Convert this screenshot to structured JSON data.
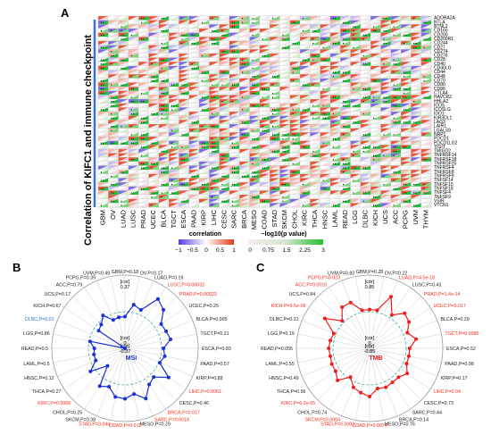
{
  "panel_a": {
    "letter": "A",
    "ylabel": "Correlation of KIFC1 and immune checkpoint",
    "legend_corr_title": "correlation",
    "legend_corr_ticks": [
      "−1",
      "−0.5",
      "0",
      "0.5",
      "1"
    ],
    "legend_p_title": "−log10(p value)",
    "legend_p_ticks": [
      "0",
      "0.75",
      "1.5",
      "2.25",
      "3"
    ],
    "colors": {
      "neg": "#5b3de0",
      "zero": "#ffffff",
      "pos": "#e23a1b",
      "p_low": "#fbe9ee",
      "p_high": "#22c02c"
    }
  },
  "panel_b": {
    "letter": "B",
    "title": "MSI",
    "ring_outer": "[cor]\n0.37",
    "ring_inner": "[cor]\n-0.37",
    "center": "[cor]\n0",
    "line_color": "#1830d8",
    "sig_color": "#ff2a1a",
    "neg_sig_color": "#1a78d4",
    "normal_color": "#222222"
  },
  "panel_c": {
    "letter": "C",
    "title": "TMB",
    "ring_outer": "[cor]\n0.85",
    "ring_inner": "[cor]\n-0.85",
    "center": "[cor]\n0",
    "line_color": "#ee1c1c",
    "sig_color": "#ff2a1a",
    "normal_color": "#222222"
  },
  "chart_data": [
    {
      "type": "heatmap",
      "title": "",
      "ylabel": "Correlation of KIFC1 and immune checkpoint",
      "x_categories": [
        "GBM",
        "OV",
        "LUAD",
        "LUSC",
        "PRAD",
        "UCEC",
        "BLCA",
        "TGCT",
        "ESCA",
        "PAAD",
        "KIRP",
        "LIHC",
        "CESC",
        "SARC",
        "BRCA",
        "MESO",
        "COAD",
        "STAD",
        "SKCM",
        "CHOL",
        "KIRC",
        "THCA",
        "HNSC",
        "LAML",
        "READ",
        "LGG",
        "DLBC",
        "KICH",
        "UCS",
        "ACC",
        "PCPG",
        "UVM",
        "THYM"
      ],
      "y_categories": [
        "ADORA2A",
        "BTLA",
        "BTNL2",
        "CD160",
        "CD200",
        "CD200R1",
        "CD244",
        "CD27",
        "CD274",
        "CD276",
        "CD28",
        "CD40",
        "CD40LG",
        "CD44",
        "CD48",
        "CD70",
        "CD80",
        "CD86",
        "CTLA4",
        "HAVCR2",
        "HHLA2",
        "ICOS",
        "ICOSLG",
        "IDO1",
        "KIR3DL1",
        "LAG3",
        "LAIR1",
        "LGALS9",
        "NRP1",
        "PDCD1",
        "PDCD1LG2",
        "TIGIT",
        "TMIGD2",
        "TNFRSF14",
        "TNFRSF18",
        "TNFRSF25",
        "TNFRSF4",
        "TNFRSF8",
        "TNFRSF9",
        "TNFSF14",
        "TNFSF15",
        "TNFSF18",
        "TNFSF4",
        "TNFSF9",
        "VSIR",
        "VTCN1"
      ],
      "color_scale": "correlation -1..1 (purple-white-red), -log10(p) 0..3 (pink-green)"
    },
    {
      "type": "radar",
      "title": "MSI",
      "range": [
        -0.37,
        0.37
      ],
      "items": [
        {
          "name": "GBM",
          "r": -0.05,
          "p": "0.18",
          "sig": false
        },
        {
          "name": "OV",
          "r": 0.08,
          "p": "0.17",
          "sig": false
        },
        {
          "name": "LUAD",
          "r": 0.05,
          "p": "0.19",
          "sig": false
        },
        {
          "name": "LUSC",
          "r": 0.23,
          "p": "0.00032",
          "sig": true
        },
        {
          "name": "PRAD",
          "r": 0.18,
          "p": "0.00023",
          "sig": true
        },
        {
          "name": "UCEC",
          "r": 0.07,
          "p": "0.25",
          "sig": false
        },
        {
          "name": "BLCA",
          "r": 0.08,
          "p": "0.095",
          "sig": false
        },
        {
          "name": "TGCT",
          "r": 0.1,
          "p": "0.21",
          "sig": false
        },
        {
          "name": "ESCA",
          "r": 0.02,
          "p": "0.83",
          "sig": false
        },
        {
          "name": "PAAD",
          "r": 0.04,
          "p": "0.57",
          "sig": false
        },
        {
          "name": "KIRP",
          "r": 0.01,
          "p": "0.88",
          "sig": false
        },
        {
          "name": "LIHC",
          "r": 0.16,
          "p": "0.0061",
          "sig": true
        },
        {
          "name": "CESC",
          "r": 0.04,
          "p": "0.46",
          "sig": false
        },
        {
          "name": "BRCA",
          "r": 0.07,
          "p": "0.017",
          "sig": true
        },
        {
          "name": "SARC",
          "r": 0.18,
          "p": "0.0018",
          "sig": true
        },
        {
          "name": "MESO",
          "r": 0.1,
          "p": "0.29",
          "sig": false
        },
        {
          "name": "COAD",
          "r": 0.14,
          "p": "0.011",
          "sig": true
        },
        {
          "name": "STAD",
          "r": 0.13,
          "p": "0.044",
          "sig": true
        },
        {
          "name": "SKCM",
          "r": 0.05,
          "p": "0.38",
          "sig": false
        },
        {
          "name": "CHOL",
          "r": 0.09,
          "p": "0.25",
          "sig": false
        },
        {
          "name": "KIRC",
          "r": -0.12,
          "p": "0.0066",
          "sig": true
        },
        {
          "name": "THCA",
          "r": 0.05,
          "p": "0.27",
          "sig": false
        },
        {
          "name": "HNSC",
          "r": -0.05,
          "p": "0.12",
          "sig": false
        },
        {
          "name": "LAML",
          "r": -0.05,
          "p": "0.5",
          "sig": false
        },
        {
          "name": "READ",
          "r": -0.06,
          "p": "0.5",
          "sig": false
        },
        {
          "name": "LGG",
          "r": -0.01,
          "p": "0.86",
          "sig": false
        },
        {
          "name": "DLBC",
          "r": -0.37,
          "p": "0.01",
          "sig": true,
          "neg": true
        },
        {
          "name": "KICH",
          "r": -0.05,
          "p": "0.67",
          "sig": false
        },
        {
          "name": "UCS",
          "r": -0.03,
          "p": "0.17",
          "sig": false
        },
        {
          "name": "ACC",
          "r": 0.03,
          "p": "0.79",
          "sig": false
        },
        {
          "name": "PCPG",
          "r": -0.06,
          "p": "0.39",
          "sig": false
        },
        {
          "name": "UVM",
          "r": -0.05,
          "p": "0.49",
          "sig": false
        }
      ]
    },
    {
      "type": "radar",
      "title": "TMB",
      "range": [
        -0.85,
        0.85
      ],
      "items": [
        {
          "name": "GBM",
          "r": 0.05,
          "p": "0.28",
          "sig": false
        },
        {
          "name": "OV",
          "r": 0.05,
          "p": "0.22",
          "sig": false
        },
        {
          "name": "LUAD",
          "r": 0.45,
          "p": "4.5e-18",
          "sig": true
        },
        {
          "name": "LUSC",
          "r": 0.08,
          "p": "0.43",
          "sig": false
        },
        {
          "name": "PRAD",
          "r": 0.3,
          "p": "1.4e-14",
          "sig": true
        },
        {
          "name": "UCEC",
          "r": 0.25,
          "p": "0.017",
          "sig": true
        },
        {
          "name": "BLCA",
          "r": 0.1,
          "p": "0.29",
          "sig": false
        },
        {
          "name": "TGCT",
          "r": 0.25,
          "p": "0.0085",
          "sig": true
        },
        {
          "name": "ESCA",
          "r": 0.08,
          "p": "0.52",
          "sig": false
        },
        {
          "name": "PAAD",
          "r": 0.08,
          "p": "0.98",
          "sig": false
        },
        {
          "name": "KIRP",
          "r": 0.08,
          "p": "0.17",
          "sig": false
        },
        {
          "name": "LIHC",
          "r": 0.2,
          "p": "0.04",
          "sig": true
        },
        {
          "name": "CESC",
          "r": 0.1,
          "p": "0.73",
          "sig": false
        },
        {
          "name": "SARC",
          "r": 0.1,
          "p": "0.44",
          "sig": false
        },
        {
          "name": "BRCA",
          "r": 0.13,
          "p": "0.14",
          "sig": false
        },
        {
          "name": "MESO",
          "r": 0.1,
          "p": "0.76",
          "sig": false
        },
        {
          "name": "COAD",
          "r": 0.27,
          "p": "0.0074",
          "sig": true
        },
        {
          "name": "STAD",
          "r": 0.2,
          "p": "0.0003",
          "sig": true
        },
        {
          "name": "SKCM",
          "r": 0.13,
          "p": "0.0004",
          "sig": true
        },
        {
          "name": "CHOL",
          "r": -0.05,
          "p": "0.74",
          "sig": false
        },
        {
          "name": "KIRC",
          "r": 0.2,
          "p": "6.2e-05",
          "sig": true
        },
        {
          "name": "THCA",
          "r": 0.1,
          "p": "0.56",
          "sig": false
        },
        {
          "name": "HNSC",
          "r": 0.1,
          "p": "0.49",
          "sig": false
        },
        {
          "name": "LAML",
          "r": 0.08,
          "p": "0.55",
          "sig": false
        },
        {
          "name": "READ",
          "r": 0.1,
          "p": "0.055",
          "sig": false
        },
        {
          "name": "LGG",
          "r": 0.08,
          "p": "0.19",
          "sig": false
        },
        {
          "name": "DLBC",
          "r": 0.05,
          "p": "0.31",
          "sig": false
        },
        {
          "name": "KICH",
          "r": 0.4,
          "p": "9.5e-09",
          "sig": true
        },
        {
          "name": "UCS",
          "r": 0.05,
          "p": "0.84",
          "sig": false
        },
        {
          "name": "ACC",
          "r": 0.3,
          "p": "0.0016",
          "sig": true
        },
        {
          "name": "PCPG",
          "r": 0.3,
          "p": "0.023",
          "sig": true
        },
        {
          "name": "UVM",
          "r": 0.05,
          "p": "0.83",
          "sig": false
        }
      ]
    }
  ]
}
